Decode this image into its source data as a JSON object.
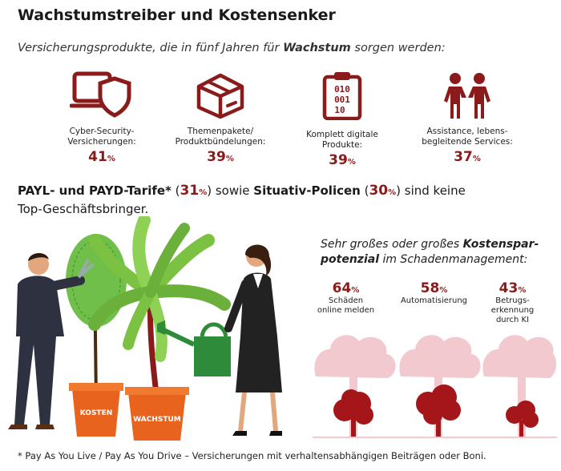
{
  "header": {
    "title": "Wachstumstreiber und Kostensenker",
    "subtitle_pre": "Versicherungsprodukte, die in fünf Jahren für ",
    "subtitle_bold": "Wachstum",
    "subtitle_post": " sorgen werden:"
  },
  "products": [
    {
      "label_line1": "Cyber-Security-",
      "label_line2": "Versicherungen:",
      "value": "41",
      "unit": "%",
      "icon": "laptop-shield-icon"
    },
    {
      "label_line1": "Themenpakete/",
      "label_line2": "Produktbündelungen:",
      "value": "39",
      "unit": "%",
      "icon": "package-box-icon"
    },
    {
      "label_line1": "Komplett digitale",
      "label_line2": "Produkte:",
      "value": "39",
      "unit": "%",
      "icon": "digital-clipboard-icon"
    },
    {
      "label_line1": "Assistance, lebens-",
      "label_line2": "begleitende Services:",
      "value": "37",
      "unit": "%",
      "icon": "people-icon"
    }
  ],
  "payl": {
    "bold1": "PAYL- und PAYD-Tarife*",
    "paren_open": " (",
    "value1": "31",
    "unit1": "%",
    "mid": ") sowie ",
    "bold2": "Situativ-Policen",
    "paren_open2": " (",
    "value2": "30",
    "unit2": "%",
    "end1": ") sind keine",
    "end2": "Top-Geschäftsbringer."
  },
  "savings": {
    "line1_pre": "Sehr großes oder großes ",
    "line1_bold": "Kostenspar-",
    "line2_bold": "potenzial",
    "line2_post": " im Schadenmanagement:",
    "stats": [
      {
        "value": "64",
        "unit": "%",
        "label_line1": "Schäden",
        "label_line2": "online melden",
        "label_line3": ""
      },
      {
        "value": "58",
        "unit": "%",
        "label_line1": "Automatisierung",
        "label_line2": "",
        "label_line3": ""
      },
      {
        "value": "43",
        "unit": "%",
        "label_line1": "Betrugs-",
        "label_line2": "erkennung",
        "label_line3": "durch KI"
      }
    ]
  },
  "illustration": {
    "pot_left_label": "KOSTEN",
    "pot_right_label": "WACHSTUM"
  },
  "footnote": "* Pay As You Live / Pay As You Drive – Versicherungen mit verhaltensabhängigen Beiträgen oder Boni.",
  "colors": {
    "accent": "#8b1a1a",
    "pink": "#f2c9cf",
    "pot": "#e8641e",
    "leaf": "#7cc242"
  }
}
